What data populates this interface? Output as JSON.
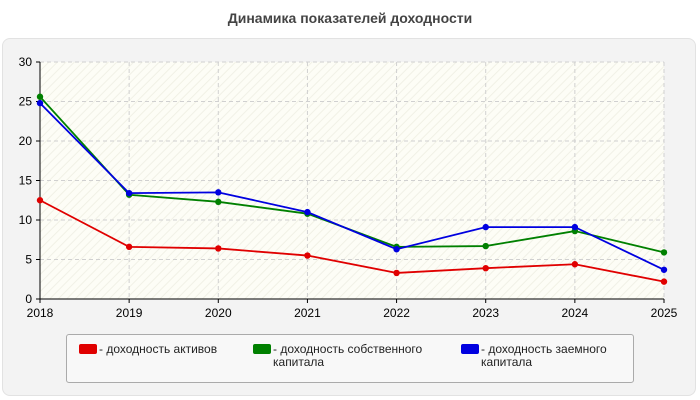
{
  "title": "Динамика показателей доходности",
  "chart_data": {
    "type": "line",
    "title": "Динамика показателей доходности",
    "x": [
      "2018",
      "2019",
      "2020",
      "2021",
      "2022",
      "2023",
      "2024",
      "2025"
    ],
    "ylim": [
      0,
      30
    ],
    "yticks": [
      "0",
      "5",
      "10",
      "15",
      "20",
      "25",
      "30"
    ],
    "grid": true,
    "legend_position": "bottom",
    "series": [
      {
        "name": "- доходность активов",
        "color": "#e00000",
        "values": [
          12.5,
          6.6,
          6.4,
          5.5,
          3.3,
          3.9,
          4.4,
          2.2
        ]
      },
      {
        "name": "- доходность собственного капитала",
        "color": "#008000",
        "values": [
          25.6,
          13.2,
          12.3,
          10.8,
          6.6,
          6.7,
          8.6,
          5.9
        ]
      },
      {
        "name": "- доходность заемного капитала",
        "color": "#0000e0",
        "values": [
          24.8,
          13.4,
          13.5,
          11.0,
          6.3,
          9.1,
          9.1,
          3.7
        ]
      }
    ]
  }
}
